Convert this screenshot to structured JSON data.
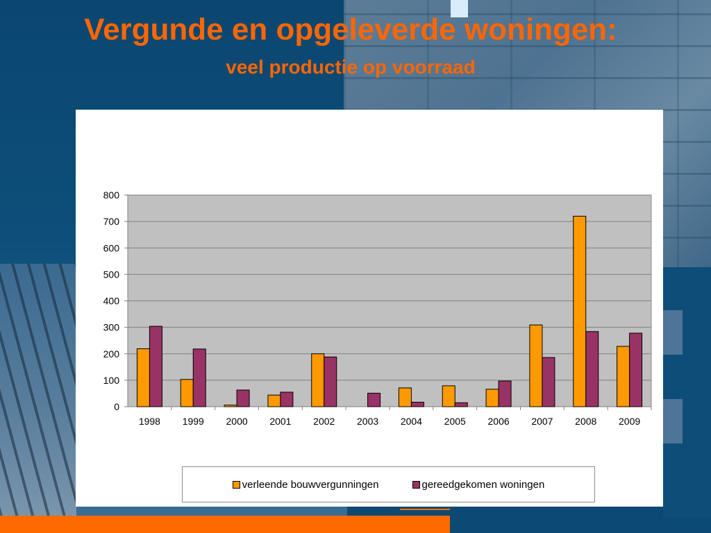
{
  "slide": {
    "title": "Vergunde en opgeleverde woningen:",
    "subtitle": "veel productie op voorraad",
    "colors": {
      "title": "#ff6600",
      "accent_bar": "#ff6a00",
      "background": "#0d4a73"
    }
  },
  "chart_data": {
    "type": "bar",
    "categories": [
      "1998",
      "1999",
      "2000",
      "2001",
      "2002",
      "2003",
      "2004",
      "2005",
      "2006",
      "2007",
      "2008",
      "2009"
    ],
    "series": [
      {
        "name": "verleende bouwvergunningen",
        "color": "#ff9900",
        "values": [
          219,
          103,
          6,
          44,
          200,
          0,
          71,
          79,
          66,
          309,
          720,
          228
        ]
      },
      {
        "name": "gereedgekomen woningen",
        "color": "#993366",
        "values": [
          304,
          218,
          63,
          55,
          188,
          51,
          17,
          15,
          97,
          186,
          284,
          278
        ]
      }
    ],
    "ylim": [
      0,
      800
    ],
    "yticks": [
      "0",
      "100",
      "200",
      "300",
      "400",
      "500",
      "600",
      "700",
      "800"
    ],
    "grid": true,
    "plot_background": "#c0c0c0",
    "legend_position": "bottom"
  }
}
